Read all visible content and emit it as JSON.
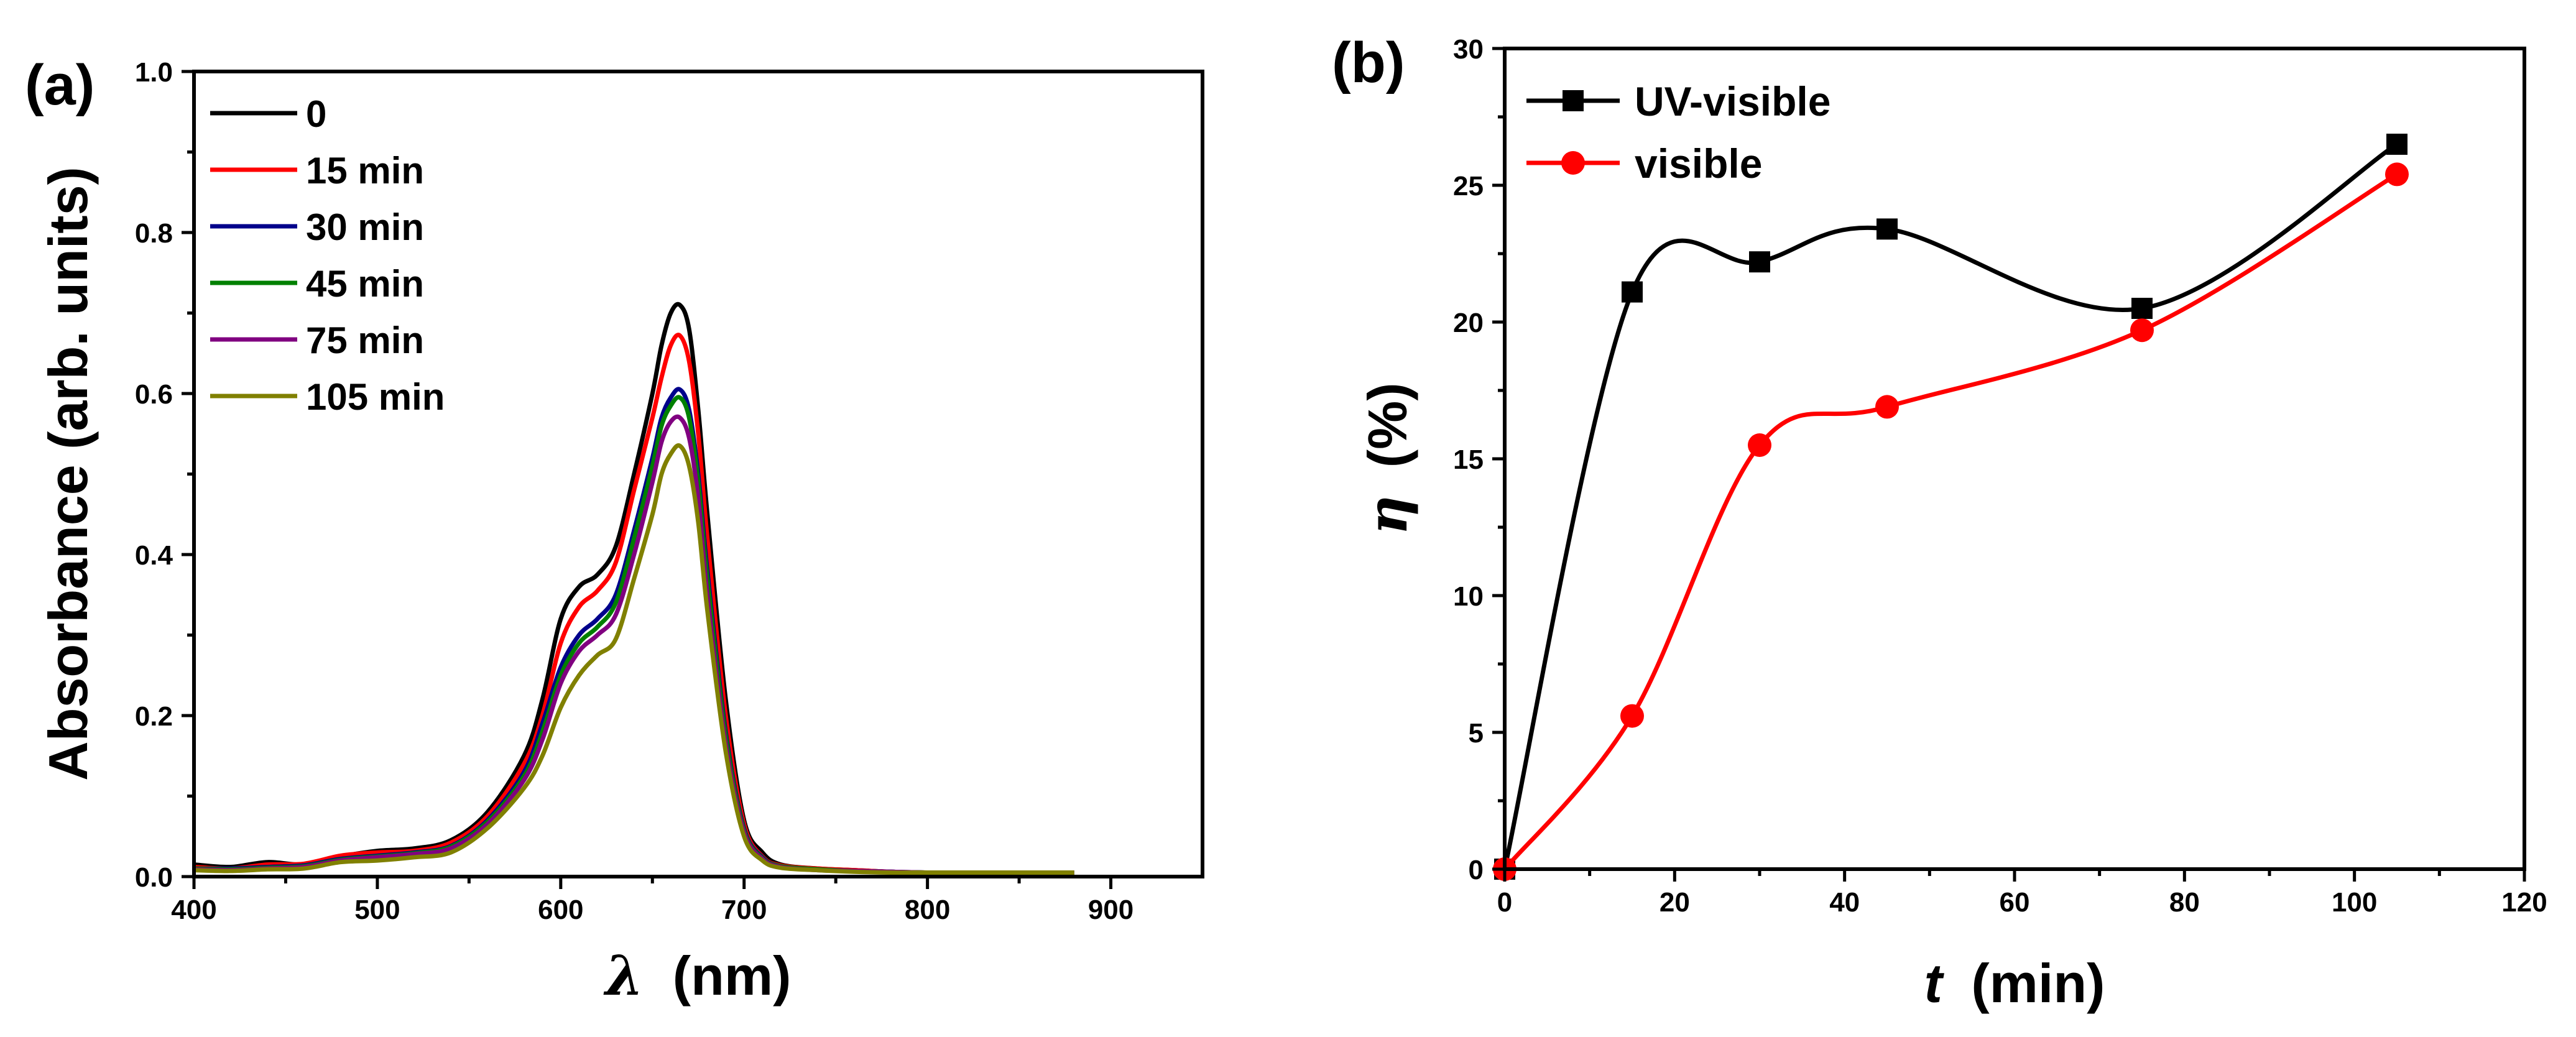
{
  "chart_data": [
    {
      "type": "line",
      "panel_label": "(a)",
      "xlabel_symbol": "λ",
      "xlabel_unit": "(nm)",
      "ylabel": "Absorbance (arb. units)",
      "xlim": [
        400,
        950
      ],
      "ylim": [
        0.0,
        1.0
      ],
      "xticks": [
        "400",
        "500",
        "600",
        "700",
        "800",
        "900"
      ],
      "yticks": [
        "0.0",
        "0.2",
        "0.4",
        "0.6",
        "0.8",
        "1.0"
      ],
      "legend_position": "top-left",
      "x": [
        400,
        420,
        440,
        460,
        480,
        500,
        520,
        540,
        560,
        580,
        590,
        600,
        610,
        620,
        630,
        640,
        650,
        655,
        660,
        665,
        670,
        675,
        680,
        690,
        700,
        710,
        720,
        740,
        760,
        780,
        800,
        820,
        840,
        860,
        880
      ],
      "series": [
        {
          "name": "0",
          "color": "#000000",
          "values": [
            0.015,
            0.012,
            0.018,
            0.015,
            0.025,
            0.032,
            0.035,
            0.045,
            0.08,
            0.15,
            0.22,
            0.32,
            0.36,
            0.375,
            0.41,
            0.5,
            0.6,
            0.66,
            0.7,
            0.71,
            0.68,
            0.58,
            0.45,
            0.22,
            0.07,
            0.03,
            0.015,
            0.01,
            0.008,
            0.006,
            0.005,
            0.005,
            0.005,
            0.005,
            0.005
          ]
        },
        {
          "name": "15 min",
          "color": "#ff0000",
          "values": [
            0.012,
            0.01,
            0.015,
            0.016,
            0.026,
            0.03,
            0.032,
            0.042,
            0.075,
            0.14,
            0.2,
            0.29,
            0.335,
            0.355,
            0.39,
            0.48,
            0.57,
            0.62,
            0.66,
            0.672,
            0.64,
            0.55,
            0.42,
            0.2,
            0.065,
            0.025,
            0.014,
            0.01,
            0.008,
            0.006,
            0.005,
            0.005,
            0.005,
            0.005,
            0.005
          ]
        },
        {
          "name": "30 min",
          "color": "#00008b",
          "values": [
            0.01,
            0.01,
            0.012,
            0.014,
            0.022,
            0.026,
            0.03,
            0.038,
            0.07,
            0.13,
            0.19,
            0.26,
            0.3,
            0.32,
            0.35,
            0.43,
            0.52,
            0.57,
            0.595,
            0.605,
            0.58,
            0.5,
            0.38,
            0.18,
            0.06,
            0.024,
            0.013,
            0.009,
            0.007,
            0.006,
            0.005,
            0.005,
            0.005,
            0.005,
            0.005
          ]
        },
        {
          "name": "45 min",
          "color": "#008000",
          "values": [
            0.01,
            0.009,
            0.011,
            0.013,
            0.021,
            0.025,
            0.029,
            0.037,
            0.068,
            0.125,
            0.18,
            0.25,
            0.29,
            0.31,
            0.34,
            0.42,
            0.51,
            0.56,
            0.585,
            0.595,
            0.57,
            0.49,
            0.37,
            0.175,
            0.058,
            0.023,
            0.013,
            0.009,
            0.007,
            0.006,
            0.005,
            0.005,
            0.005,
            0.005,
            0.005
          ]
        },
        {
          "name": "75 min",
          "color": "#800080",
          "values": [
            0.009,
            0.008,
            0.01,
            0.012,
            0.02,
            0.024,
            0.028,
            0.035,
            0.065,
            0.12,
            0.17,
            0.24,
            0.28,
            0.3,
            0.325,
            0.4,
            0.49,
            0.54,
            0.565,
            0.57,
            0.545,
            0.47,
            0.35,
            0.165,
            0.055,
            0.022,
            0.012,
            0.008,
            0.007,
            0.006,
            0.005,
            0.005,
            0.005,
            0.005,
            0.005
          ]
        },
        {
          "name": "105 min",
          "color": "#808000",
          "values": [
            0.008,
            0.007,
            0.009,
            0.01,
            0.018,
            0.02,
            0.024,
            0.03,
            0.06,
            0.11,
            0.15,
            0.21,
            0.25,
            0.275,
            0.295,
            0.37,
            0.45,
            0.5,
            0.525,
            0.535,
            0.51,
            0.44,
            0.33,
            0.155,
            0.05,
            0.02,
            0.011,
            0.008,
            0.006,
            0.005,
            0.005,
            0.005,
            0.005,
            0.005,
            0.005
          ]
        }
      ]
    },
    {
      "type": "line",
      "panel_label": "(b)",
      "xlabel_symbol": "t",
      "xlabel_unit": "(min)",
      "ylabel_symbol": "η",
      "ylabel_unit": "(%)",
      "xlim": [
        0,
        120
      ],
      "ylim": [
        0,
        30
      ],
      "xticks": [
        "0",
        "20",
        "40",
        "60",
        "80",
        "100",
        "120"
      ],
      "yticks": [
        "0",
        "5",
        "10",
        "15",
        "20",
        "25",
        "30"
      ],
      "legend_position": "top-left",
      "x": [
        0,
        15,
        30,
        45,
        75,
        105
      ],
      "series": [
        {
          "name": "UV-visible",
          "color": "#000000",
          "marker": "square",
          "values": [
            0,
            21.1,
            22.2,
            23.4,
            20.5,
            26.5
          ]
        },
        {
          "name": "visible",
          "color": "#ff0000",
          "marker": "circle",
          "values": [
            0,
            5.6,
            15.5,
            16.9,
            19.7,
            25.4
          ]
        }
      ]
    }
  ]
}
